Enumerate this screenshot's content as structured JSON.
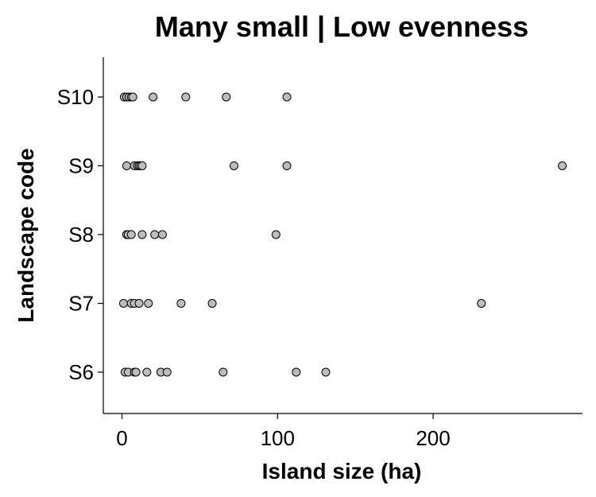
{
  "chart_data": {
    "type": "scatter",
    "title": "Many small | Low evenness",
    "xlabel": "Island size (ha)",
    "ylabel": "Landscape code",
    "x_ticks": [
      0,
      100,
      200
    ],
    "xlim": [
      -12,
      296
    ],
    "categories": [
      "S6",
      "S7",
      "S8",
      "S9",
      "S10"
    ],
    "grid": false,
    "legend": "none",
    "point_color": "#bdbdbd",
    "series": [
      {
        "category": "S10",
        "x": [
          1.5,
          3,
          4.5,
          6,
          7,
          20,
          41,
          67,
          106
        ]
      },
      {
        "category": "S9",
        "x": [
          3,
          8,
          10,
          11,
          12,
          13,
          72,
          106,
          283
        ]
      },
      {
        "category": "S8",
        "x": [
          3,
          4,
          6,
          13,
          21,
          26,
          99
        ]
      },
      {
        "category": "S7",
        "x": [
          1,
          6,
          8,
          11,
          17,
          38,
          58,
          231
        ]
      },
      {
        "category": "S6",
        "x": [
          2,
          4,
          8,
          9,
          16,
          25,
          29,
          65,
          112,
          131
        ]
      }
    ]
  }
}
